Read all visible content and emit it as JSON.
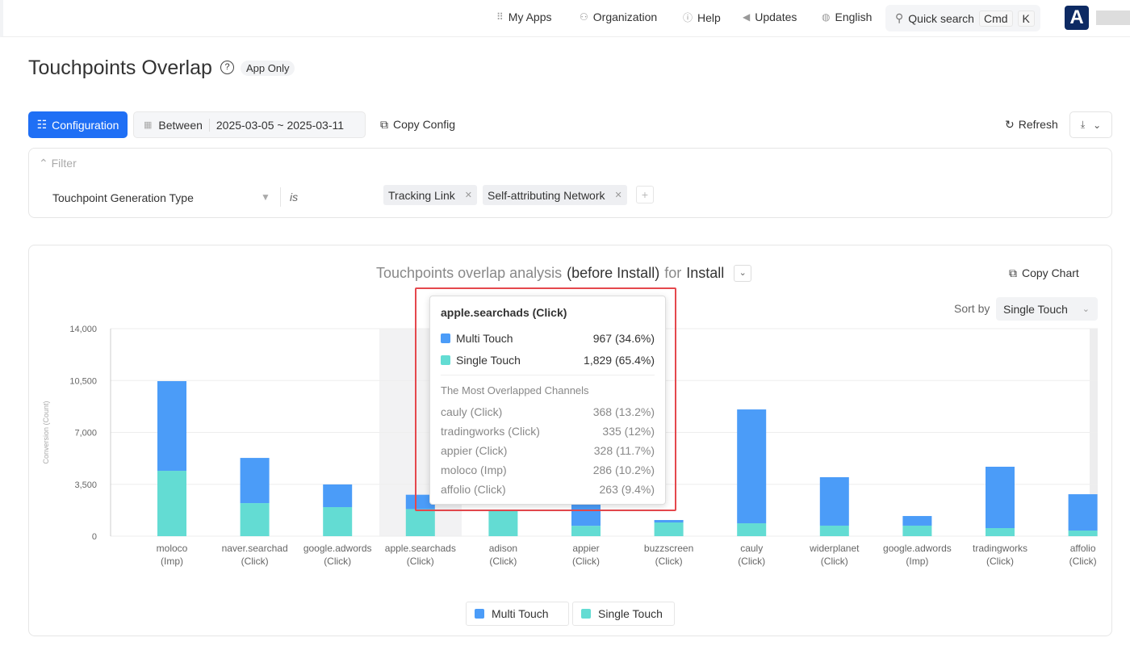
{
  "topbar": {
    "my_apps": "My Apps",
    "organization": "Organization",
    "help": "Help",
    "updates": "Updates",
    "language": "English",
    "quick_search": "Quick search",
    "kbd_cmd": "Cmd",
    "kbd_k": "K",
    "logo": "A"
  },
  "page": {
    "title": "Touchpoints Overlap",
    "badge": "App Only"
  },
  "toolbar": {
    "configuration": "Configuration",
    "between": "Between",
    "date_range": "2025-03-05 ~ 2025-03-11",
    "copy_config": "Copy Config",
    "refresh": "Refresh"
  },
  "filter": {
    "label": "Filter",
    "field": "Touchpoint Generation Type",
    "operator": "is",
    "values": [
      "Tracking Link",
      "Self-attributing Network"
    ]
  },
  "chart_header": {
    "t1": "Touchpoints overlap analysis",
    "t2": "(before Install)",
    "t3": "for",
    "t4": "Install",
    "copy_chart": "Copy Chart",
    "sort_by": "Sort by",
    "sort_value": "Single Touch"
  },
  "colors": {
    "multi": "#4b9cf8",
    "single": "#63dcd3",
    "accent": "#1f6ff5",
    "highlight": "#e5484d"
  },
  "chart_data": {
    "type": "bar",
    "stacked": true,
    "ylabel": "Conversion (Count)",
    "ylim": [
      0,
      14000
    ],
    "yticks": [
      "0",
      "3,500",
      "7,000",
      "10,500",
      "14,000"
    ],
    "categories": [
      [
        "moloco",
        "(Imp)"
      ],
      [
        "naver.searchad",
        "(Click)"
      ],
      [
        "google.adwords",
        "(Click)"
      ],
      [
        "apple.searchads",
        "(Click)"
      ],
      [
        "adison",
        "(Click)"
      ],
      [
        "appier",
        "(Click)"
      ],
      [
        "buzzscreen",
        "(Click)"
      ],
      [
        "cauly",
        "(Click)"
      ],
      [
        "widerplanet",
        "(Click)"
      ],
      [
        "google.adwords",
        "(Imp)"
      ],
      [
        "tradingworks",
        "(Click)"
      ],
      [
        "affolio",
        "(Click)"
      ]
    ],
    "series": [
      {
        "name": "Single Touch",
        "values": [
          4410,
          2230,
          1960,
          1829,
          1700,
          700,
          925,
          870,
          710,
          710,
          545,
          380
        ]
      },
      {
        "name": "Multi Touch",
        "values": [
          6050,
          3050,
          1530,
          967,
          50,
          5950,
          165,
          7680,
          3270,
          650,
          4140,
          2450
        ]
      }
    ],
    "legend": [
      "Multi Touch",
      "Single Touch"
    ],
    "legend_position": "bottom"
  },
  "tooltip": {
    "title": "apple.searchads (Click)",
    "multi_label": "Multi Touch",
    "multi_value": "967 (34.6%)",
    "single_label": "Single Touch",
    "single_value": "1,829 (65.4%)",
    "section": "The Most Overlapped Channels",
    "channels": [
      {
        "name": "cauly (Click)",
        "value": "368 (13.2%)"
      },
      {
        "name": "tradingworks (Click)",
        "value": "335 (12%)"
      },
      {
        "name": "appier (Click)",
        "value": "328 (11.7%)"
      },
      {
        "name": "moloco (Imp)",
        "value": "286 (10.2%)"
      },
      {
        "name": "affolio (Click)",
        "value": "263 (9.4%)"
      }
    ]
  }
}
